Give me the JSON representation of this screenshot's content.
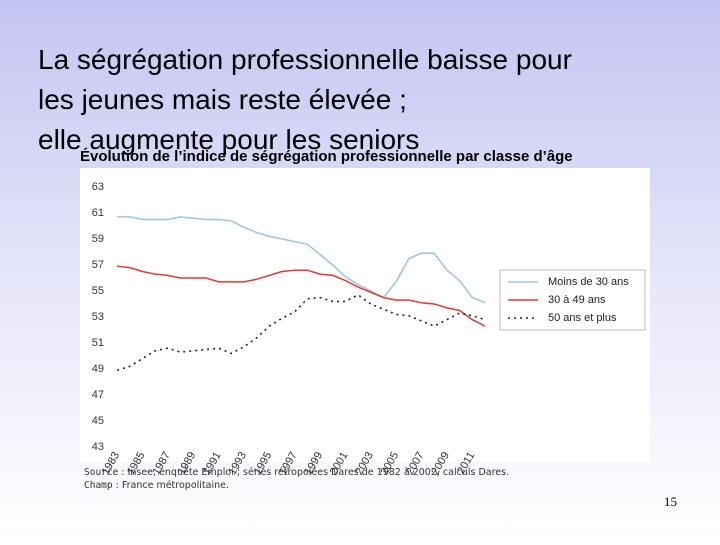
{
  "slide": {
    "title": "La ségrégation professionnelle baisse pour les jeunes mais reste élevée ; elle augmente pour les seniors",
    "source_label": "Source",
    "source": " : Insee, enquête Emploi ; séries rétropolées Dares de 1982 à 2002, calculs Dares.",
    "champ_label": "Champ",
    "champ": " : France métropolitaine.",
    "page": 15
  },
  "chart_data": {
    "type": "line",
    "title": "Évolution de l’indice de ségrégation professionnelle par classe d’âge",
    "x": [
      1983,
      1984,
      1985,
      1986,
      1987,
      1988,
      1989,
      1990,
      1991,
      1992,
      1993,
      1994,
      1995,
      1996,
      1997,
      1998,
      1999,
      2000,
      2001,
      2002,
      2003,
      2004,
      2005,
      2006,
      2007,
      2008,
      2009,
      2010,
      2011,
      2012
    ],
    "series": [
      {
        "name": "Moins de 30 ans",
        "color": "#9dc3e6",
        "style": "solid",
        "values": [
          60.7,
          60.7,
          60.5,
          60.5,
          60.5,
          60.7,
          60.6,
          60.5,
          60.5,
          60.4,
          59.9,
          59.5,
          59.2,
          59.0,
          58.8,
          58.6,
          57.8,
          57.0,
          56.1,
          55.5,
          55.0,
          54.5,
          55.7,
          57.5,
          57.9,
          57.9,
          56.6,
          55.8,
          54.5,
          54.1
        ]
      },
      {
        "name": "30 à 49 ans",
        "color": "#e03c31",
        "style": "solid",
        "values": [
          56.9,
          56.8,
          56.5,
          56.3,
          56.2,
          56.0,
          56.0,
          56.0,
          55.7,
          55.7,
          55.7,
          55.9,
          56.2,
          56.5,
          56.6,
          56.6,
          56.3,
          56.2,
          55.8,
          55.3,
          54.9,
          54.5,
          54.3,
          54.3,
          54.1,
          54.0,
          53.7,
          53.5,
          52.8,
          52.3
        ]
      },
      {
        "name": "50 ans et plus",
        "color": "#222222",
        "style": "dotted",
        "values": [
          48.9,
          49.2,
          49.8,
          50.4,
          50.6,
          50.3,
          50.4,
          50.5,
          50.6,
          50.2,
          50.7,
          51.4,
          52.3,
          52.9,
          53.4,
          54.4,
          54.5,
          54.2,
          54.2,
          54.7,
          54.0,
          53.6,
          53.2,
          53.1,
          52.7,
          52.3,
          52.8,
          53.3,
          53.1,
          52.8
        ]
      }
    ],
    "xlim": [
      1982.6,
      2012.4
    ],
    "xticks": [
      1983,
      1985,
      1987,
      1989,
      1991,
      1993,
      1995,
      1997,
      1999,
      2001,
      2003,
      2005,
      2007,
      2009,
      2011
    ],
    "ylim": [
      43,
      63
    ],
    "yticks": [
      43,
      45,
      47,
      49,
      51,
      53,
      55,
      57,
      59,
      61,
      63
    ],
    "grid": false,
    "legend": "right"
  }
}
